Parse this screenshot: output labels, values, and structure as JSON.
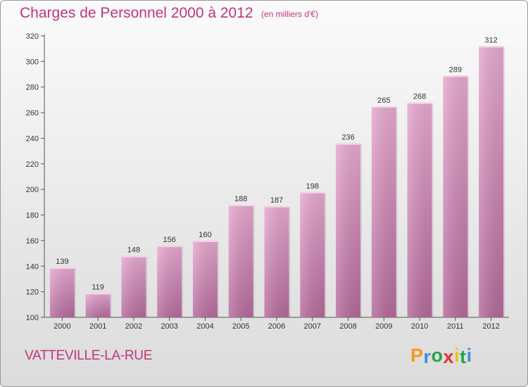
{
  "header": {
    "title": "Charges de Personnel 2000 à 2012",
    "subtitle": "(en milliers d'€)"
  },
  "footer": {
    "place": "VATTEVILLE-LA-RUE",
    "logo_letters": [
      "P",
      "r",
      "o",
      "x",
      "i",
      "t",
      "i"
    ],
    "logo_colors": [
      "#f39a1e",
      "#3d8fd6",
      "#2aa24a",
      "#e6312f",
      "#f0c21b",
      "#2aa24a",
      "#3d8fd6"
    ]
  },
  "colors": {
    "bar_top": "#e6a8cf",
    "bar_bottom": "#b4699a",
    "text_accent": "#c0357a"
  },
  "chart_data": {
    "type": "bar",
    "categories": [
      "2000",
      "2001",
      "2002",
      "2003",
      "2004",
      "2005",
      "2006",
      "2007",
      "2008",
      "2009",
      "2010",
      "2011",
      "2012"
    ],
    "values": [
      139,
      119,
      148,
      156,
      160,
      188,
      187,
      198,
      236,
      265,
      268,
      289,
      312
    ],
    "ylim": [
      100,
      320
    ],
    "yticks": [
      100,
      120,
      140,
      160,
      180,
      200,
      220,
      240,
      260,
      280,
      300,
      320
    ],
    "grid": false,
    "xlabel": "",
    "ylabel": ""
  }
}
